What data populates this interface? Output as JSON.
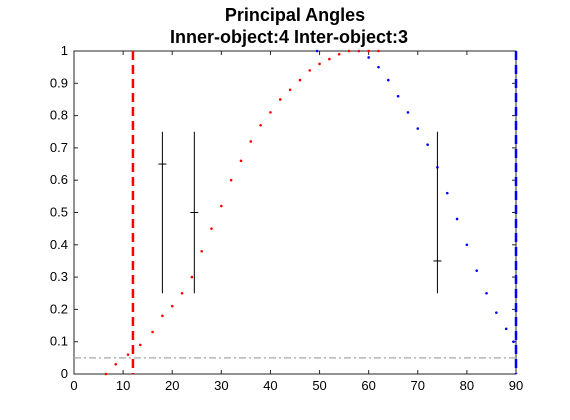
{
  "chart_data": {
    "type": "scatter",
    "title": "Principal Angles",
    "subtitle": "Inner-object:4  Inter-object:3",
    "xlabel": "",
    "ylabel": "",
    "xlim": [
      0,
      90
    ],
    "ylim": [
      0,
      1
    ],
    "x_ticks": [
      "0",
      "10",
      "20",
      "30",
      "40",
      "50",
      "60",
      "70",
      "80",
      "90"
    ],
    "y_ticks": [
      "0",
      "0.1",
      "0.2",
      "0.3",
      "0.4",
      "0.5",
      "0.6",
      "0.7",
      "0.8",
      "0.9",
      "1"
    ],
    "grid": false,
    "legend": "none",
    "series": [
      {
        "color": "#ff0000",
        "style": "dotted",
        "points": [
          [
            6.5,
            0
          ],
          [
            8.5,
            0.03
          ],
          [
            11,
            0.06
          ],
          [
            13.5,
            0.09
          ],
          [
            16,
            0.13
          ],
          [
            18,
            0.18
          ],
          [
            20,
            0.21
          ],
          [
            22,
            0.25
          ],
          [
            24,
            0.3
          ],
          [
            26,
            0.38
          ],
          [
            28,
            0.45
          ],
          [
            30,
            0.52
          ],
          [
            32,
            0.6
          ],
          [
            34,
            0.66
          ],
          [
            36,
            0.72
          ],
          [
            38,
            0.77
          ],
          [
            40,
            0.81
          ],
          [
            42,
            0.85
          ],
          [
            44,
            0.88
          ],
          [
            46,
            0.91
          ],
          [
            48,
            0.94
          ],
          [
            50,
            0.96
          ],
          [
            52,
            0.975
          ],
          [
            54,
            0.99
          ],
          [
            56,
            1.0
          ],
          [
            58,
            1.0
          ],
          [
            60,
            1.0
          ],
          [
            62,
            1.0
          ]
        ]
      },
      {
        "color": "#0000ff",
        "style": "dotted",
        "points": [
          [
            49.5,
            1.0
          ],
          [
            60,
            0.98
          ],
          [
            62,
            0.95
          ],
          [
            64,
            0.91
          ],
          [
            66,
            0.86
          ],
          [
            68,
            0.81
          ],
          [
            70,
            0.76
          ],
          [
            72,
            0.71
          ],
          [
            74,
            0.64
          ],
          [
            76,
            0.56
          ],
          [
            78,
            0.48
          ],
          [
            80,
            0.4
          ],
          [
            82,
            0.32
          ],
          [
            84,
            0.25
          ],
          [
            86,
            0.19
          ],
          [
            88,
            0.14
          ],
          [
            89.5,
            0.1
          ]
        ]
      }
    ],
    "vlines": [
      {
        "x": 12,
        "color": "#ff0000",
        "style": "dashed"
      },
      {
        "x": 90,
        "color": "#0000ff",
        "style": "dashed"
      }
    ],
    "hlines": [
      {
        "y": 0.05,
        "color": "#a6a6a6",
        "style": "dashdot"
      }
    ],
    "error_markers": [
      {
        "x": 18,
        "y": 0.65,
        "low": 0.25,
        "high": 0.75
      },
      {
        "x": 24.5,
        "y": 0.5,
        "low": 0.25,
        "high": 0.75
      },
      {
        "x": 74,
        "y": 0.35,
        "low": 0.25,
        "high": 0.75
      }
    ]
  }
}
